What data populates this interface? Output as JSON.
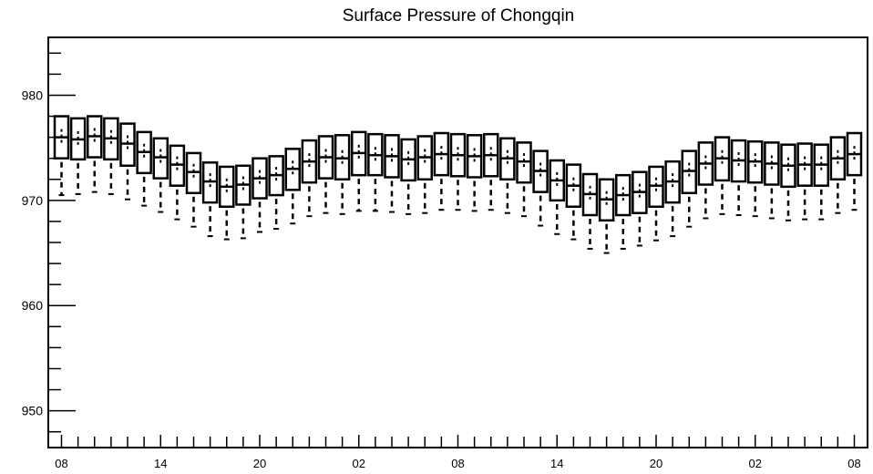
{
  "chart_data": {
    "type": "box",
    "title": "Surface Pressure of Chongqin",
    "xlabel": "",
    "ylabel": "",
    "ylim": [
      946.5,
      985.5
    ],
    "xlim": [
      -0.8,
      48.8
    ],
    "y_ticks": [
      950,
      960,
      970,
      980
    ],
    "y_tick_labels": [
      "950",
      "960",
      "970",
      "980"
    ],
    "x_ticks": [
      0,
      6,
      12,
      18,
      24,
      30,
      36,
      42,
      48
    ],
    "x_tick_labels": [
      "08",
      "14",
      "20",
      "02",
      "08",
      "14",
      "20",
      "02",
      "08"
    ],
    "grid": false,
    "legend": "none",
    "colors": {
      "stroke": "#000000",
      "background": "#ffffff"
    },
    "boxes": [
      {
        "x": 0,
        "whisker_low": 970.5,
        "q1": 974.0,
        "median": 976.0,
        "q3": 978.0,
        "whisker_high": 978.0
      },
      {
        "x": 1,
        "whisker_low": 970.6,
        "q1": 973.9,
        "median": 975.8,
        "q3": 977.8,
        "whisker_high": 977.8
      },
      {
        "x": 2,
        "whisker_low": 970.8,
        "q1": 974.1,
        "median": 976.1,
        "q3": 978.0,
        "whisker_high": 978.0
      },
      {
        "x": 3,
        "whisker_low": 970.6,
        "q1": 973.9,
        "median": 975.9,
        "q3": 977.8,
        "whisker_high": 977.8
      },
      {
        "x": 4,
        "whisker_low": 970.1,
        "q1": 973.3,
        "median": 975.4,
        "q3": 977.3,
        "whisker_high": 977.3
      },
      {
        "x": 5,
        "whisker_low": 969.5,
        "q1": 972.6,
        "median": 974.6,
        "q3": 976.5,
        "whisker_high": 976.5
      },
      {
        "x": 6,
        "whisker_low": 968.9,
        "q1": 972.1,
        "median": 974.1,
        "q3": 975.9,
        "whisker_high": 975.9
      },
      {
        "x": 7,
        "whisker_low": 968.2,
        "q1": 971.4,
        "median": 973.4,
        "q3": 975.2,
        "whisker_high": 975.2
      },
      {
        "x": 8,
        "whisker_low": 967.5,
        "q1": 970.7,
        "median": 972.7,
        "q3": 974.5,
        "whisker_high": 974.5
      },
      {
        "x": 9,
        "whisker_low": 966.6,
        "q1": 969.8,
        "median": 971.8,
        "q3": 973.6,
        "whisker_high": 973.6
      },
      {
        "x": 10,
        "whisker_low": 966.3,
        "q1": 969.4,
        "median": 971.3,
        "q3": 973.2,
        "whisker_high": 973.2
      },
      {
        "x": 11,
        "whisker_low": 966.4,
        "q1": 969.6,
        "median": 971.5,
        "q3": 973.3,
        "whisker_high": 973.3
      },
      {
        "x": 12,
        "whisker_low": 967.0,
        "q1": 970.2,
        "median": 972.1,
        "q3": 974.0,
        "whisker_high": 974.0
      },
      {
        "x": 13,
        "whisker_low": 967.3,
        "q1": 970.5,
        "median": 972.4,
        "q3": 974.2,
        "whisker_high": 974.2
      },
      {
        "x": 14,
        "whisker_low": 967.8,
        "q1": 971.0,
        "median": 973.0,
        "q3": 974.9,
        "whisker_high": 974.9
      },
      {
        "x": 15,
        "whisker_low": 968.5,
        "q1": 971.7,
        "median": 973.7,
        "q3": 975.7,
        "whisker_high": 975.7
      },
      {
        "x": 16,
        "whisker_low": 968.8,
        "q1": 972.1,
        "median": 974.1,
        "q3": 976.1,
        "whisker_high": 976.1
      },
      {
        "x": 17,
        "whisker_low": 968.7,
        "q1": 972.0,
        "median": 974.0,
        "q3": 976.2,
        "whisker_high": 976.2
      },
      {
        "x": 18,
        "whisker_low": 969.0,
        "q1": 972.4,
        "median": 974.5,
        "q3": 976.5,
        "whisker_high": 976.5
      },
      {
        "x": 19,
        "whisker_low": 969.0,
        "q1": 972.4,
        "median": 974.3,
        "q3": 976.3,
        "whisker_high": 976.3
      },
      {
        "x": 20,
        "whisker_low": 968.9,
        "q1": 972.2,
        "median": 974.2,
        "q3": 976.2,
        "whisker_high": 976.2
      },
      {
        "x": 21,
        "whisker_low": 968.7,
        "q1": 971.9,
        "median": 973.9,
        "q3": 975.8,
        "whisker_high": 975.8
      },
      {
        "x": 22,
        "whisker_low": 968.8,
        "q1": 972.0,
        "median": 974.1,
        "q3": 976.1,
        "whisker_high": 976.1
      },
      {
        "x": 23,
        "whisker_low": 969.1,
        "q1": 972.4,
        "median": 974.4,
        "q3": 976.4,
        "whisker_high": 976.4
      },
      {
        "x": 24,
        "whisker_low": 969.1,
        "q1": 972.3,
        "median": 974.3,
        "q3": 976.3,
        "whisker_high": 976.3
      },
      {
        "x": 25,
        "whisker_low": 969.0,
        "q1": 972.2,
        "median": 974.2,
        "q3": 976.2,
        "whisker_high": 976.2
      },
      {
        "x": 26,
        "whisker_low": 969.1,
        "q1": 972.3,
        "median": 974.3,
        "q3": 976.3,
        "whisker_high": 976.3
      },
      {
        "x": 27,
        "whisker_low": 968.8,
        "q1": 972.0,
        "median": 974.0,
        "q3": 975.9,
        "whisker_high": 975.9
      },
      {
        "x": 28,
        "whisker_low": 968.5,
        "q1": 971.7,
        "median": 973.7,
        "q3": 975.5,
        "whisker_high": 975.5
      },
      {
        "x": 29,
        "whisker_low": 967.6,
        "q1": 970.8,
        "median": 972.8,
        "q3": 974.7,
        "whisker_high": 974.7
      },
      {
        "x": 30,
        "whisker_low": 966.8,
        "q1": 970.0,
        "median": 971.9,
        "q3": 973.8,
        "whisker_high": 973.8
      },
      {
        "x": 31,
        "whisker_low": 966.3,
        "q1": 969.4,
        "median": 971.4,
        "q3": 973.4,
        "whisker_high": 973.4
      },
      {
        "x": 32,
        "whisker_low": 965.4,
        "q1": 968.6,
        "median": 970.6,
        "q3": 972.5,
        "whisker_high": 972.5
      },
      {
        "x": 33,
        "whisker_low": 965.0,
        "q1": 968.1,
        "median": 970.1,
        "q3": 972.0,
        "whisker_high": 972.0
      },
      {
        "x": 34,
        "whisker_low": 965.4,
        "q1": 968.6,
        "median": 970.5,
        "q3": 972.4,
        "whisker_high": 972.4
      },
      {
        "x": 35,
        "whisker_low": 965.7,
        "q1": 968.8,
        "median": 970.8,
        "q3": 972.7,
        "whisker_high": 972.7
      },
      {
        "x": 36,
        "whisker_low": 966.2,
        "q1": 969.4,
        "median": 971.4,
        "q3": 973.2,
        "whisker_high": 973.2
      },
      {
        "x": 37,
        "whisker_low": 966.6,
        "q1": 969.8,
        "median": 971.8,
        "q3": 973.7,
        "whisker_high": 973.7
      },
      {
        "x": 38,
        "whisker_low": 967.5,
        "q1": 970.7,
        "median": 972.8,
        "q3": 974.7,
        "whisker_high": 974.7
      },
      {
        "x": 39,
        "whisker_low": 968.3,
        "q1": 971.5,
        "median": 973.5,
        "q3": 975.5,
        "whisker_high": 975.5
      },
      {
        "x": 40,
        "whisker_low": 968.7,
        "q1": 971.9,
        "median": 974.0,
        "q3": 976.0,
        "whisker_high": 976.0
      },
      {
        "x": 41,
        "whisker_low": 968.6,
        "q1": 971.8,
        "median": 973.8,
        "q3": 975.7,
        "whisker_high": 975.7
      },
      {
        "x": 42,
        "whisker_low": 968.5,
        "q1": 971.7,
        "median": 973.7,
        "q3": 975.6,
        "whisker_high": 975.6
      },
      {
        "x": 43,
        "whisker_low": 968.3,
        "q1": 971.5,
        "median": 973.5,
        "q3": 975.5,
        "whisker_high": 975.5
      },
      {
        "x": 44,
        "whisker_low": 968.1,
        "q1": 971.3,
        "median": 973.3,
        "q3": 975.3,
        "whisker_high": 975.3
      },
      {
        "x": 45,
        "whisker_low": 968.2,
        "q1": 971.4,
        "median": 973.4,
        "q3": 975.4,
        "whisker_high": 975.4
      },
      {
        "x": 46,
        "whisker_low": 968.2,
        "q1": 971.4,
        "median": 973.4,
        "q3": 975.3,
        "whisker_high": 975.3
      },
      {
        "x": 47,
        "whisker_low": 968.8,
        "q1": 972.0,
        "median": 974.0,
        "q3": 976.0,
        "whisker_high": 976.0
      },
      {
        "x": 48,
        "whisker_low": 969.1,
        "q1": 972.4,
        "median": 974.4,
        "q3": 976.4,
        "whisker_high": 976.4
      }
    ]
  }
}
